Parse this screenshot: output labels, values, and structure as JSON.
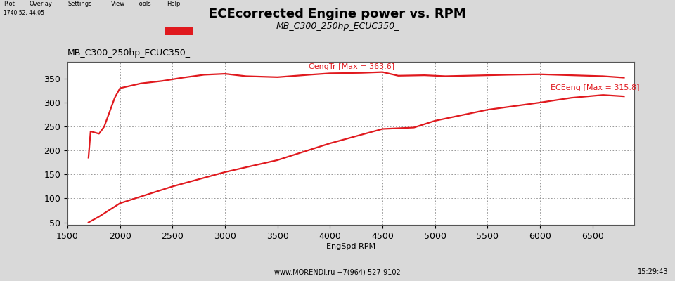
{
  "chart_data": {
    "type": "line",
    "title": "ECEcorrected Engine power vs. RPM",
    "subtitle": "MB_C300_250hp_ECUC350_",
    "run_label": "MB_C300_250hp_ECUC350_",
    "menu": [
      "Plot",
      "Overlay",
      "Settings",
      "View",
      "Tools",
      "Help"
    ],
    "cursor": "1740.52, 44.05",
    "x_label": "EngSpd RPM",
    "footer": "www.MORENDI.ru +7(964) 527-9102",
    "time": "15:29:43",
    "color": "#e0191e",
    "grid": true,
    "xlim": [
      1500,
      6900
    ],
    "xticks": [
      1500,
      2000,
      2500,
      3000,
      3500,
      4000,
      4500,
      5000,
      5500,
      6000,
      6500
    ],
    "ylim": [
      45,
      385
    ],
    "yticks": [
      50,
      100,
      150,
      200,
      250,
      300,
      350
    ],
    "series": [
      {
        "name": "CengTr [Max = 363.6]",
        "color": "#e0191e",
        "line_style": "solid",
        "x": [
          1700,
          1720,
          1800,
          1850,
          1900,
          1950,
          2000,
          2200,
          2400,
          2600,
          2800,
          3000,
          3200,
          3500,
          3800,
          4000,
          4300,
          4500,
          4650,
          4900,
          5100,
          5500,
          5700,
          6000,
          6300,
          6600,
          6800
        ],
        "values": [
          185,
          240,
          235,
          250,
          280,
          310,
          330,
          340,
          345,
          352,
          358,
          360,
          355,
          353,
          358,
          361,
          362,
          363.6,
          356,
          357,
          355,
          357,
          358,
          359,
          357,
          355,
          352
        ]
      },
      {
        "name": "ECEeng [Max = 315.8]",
        "color": "#e0191e",
        "line_style": "solid",
        "x": [
          1700,
          1800,
          2000,
          2500,
          3000,
          3500,
          4000,
          4500,
          4800,
          5000,
          5500,
          6000,
          6300,
          6600,
          6800
        ],
        "values": [
          50,
          62,
          90,
          125,
          155,
          180,
          215,
          245,
          248,
          262,
          285,
          300,
          310,
          315.8,
          313
        ]
      }
    ]
  }
}
